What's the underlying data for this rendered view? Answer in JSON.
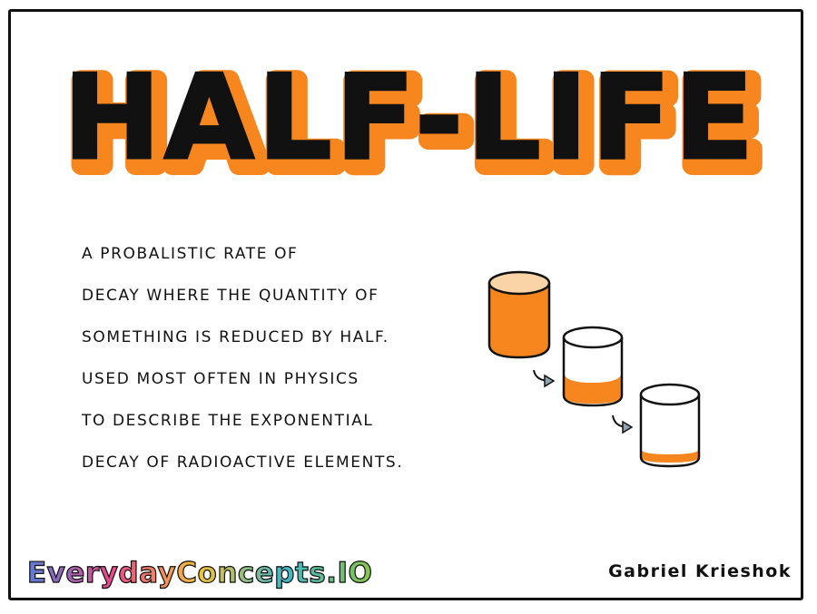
{
  "title": "HALF-LIFE",
  "description_lines": [
    "A PROBALISTIC RATE OF",
    "DECAY WHERE THE QUANTITY OF",
    "SOMETHING IS REDUCED BY HALF.",
    "USED MOST OFTEN IN PHYSICS",
    "TO DESCRIBE THE EXPONENTIAL",
    "DECAY OF RADIOACTIVE ELEMENTS."
  ],
  "illustration": {
    "fill_levels": [
      1.0,
      0.5,
      0.25
    ],
    "liquid_color": "#f7861f",
    "liquid_top_color": "#fad3a6"
  },
  "brand": {
    "text": "EverydayConcepts.IO",
    "colors": [
      "#5b7cd6",
      "#e84a8a",
      "#f2c13a",
      "#3fb7c9",
      "#8ac44a"
    ]
  },
  "author": "Gabriel Krieshok",
  "colors": {
    "accent_orange": "#f7861f",
    "ink": "#111111"
  }
}
